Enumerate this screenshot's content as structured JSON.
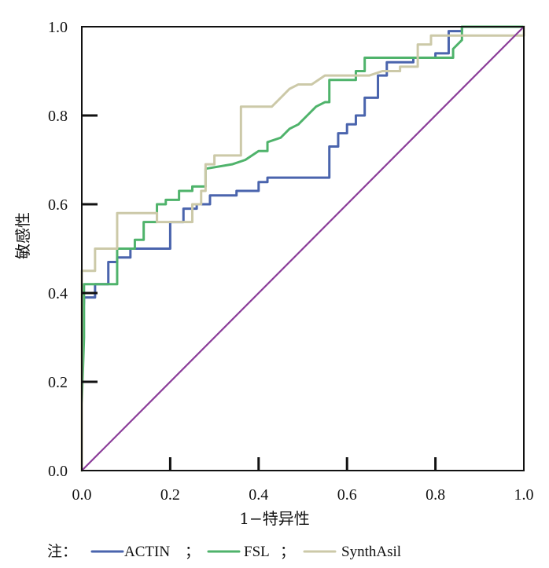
{
  "chart_data": {
    "type": "line",
    "xlabel": "1−特异性",
    "ylabel": "敏感性",
    "xlim": [
      0.0,
      1.0
    ],
    "ylim": [
      0.0,
      1.0
    ],
    "x_ticks": [
      "0.0",
      "0.2",
      "0.4",
      "0.6",
      "0.8",
      "1.0"
    ],
    "y_ticks": [
      "0.0",
      "0.2",
      "0.4",
      "0.6",
      "0.8",
      "1.0"
    ],
    "grid": false,
    "legend_position": "bottom",
    "legend_prefix": "注：",
    "legend_separator": "；",
    "series": [
      {
        "name": "ACTIN",
        "color": "#4a64ad",
        "points": [
          [
            0.0,
            0.0
          ],
          [
            0.0,
            0.3
          ],
          [
            0.005,
            0.38
          ],
          [
            0.005,
            0.39
          ],
          [
            0.03,
            0.39
          ],
          [
            0.03,
            0.42
          ],
          [
            0.06,
            0.42
          ],
          [
            0.06,
            0.47
          ],
          [
            0.08,
            0.47
          ],
          [
            0.08,
            0.48
          ],
          [
            0.11,
            0.48
          ],
          [
            0.11,
            0.5
          ],
          [
            0.2,
            0.5
          ],
          [
            0.2,
            0.56
          ],
          [
            0.23,
            0.56
          ],
          [
            0.23,
            0.59
          ],
          [
            0.26,
            0.59
          ],
          [
            0.26,
            0.6
          ],
          [
            0.29,
            0.6
          ],
          [
            0.29,
            0.62
          ],
          [
            0.35,
            0.62
          ],
          [
            0.35,
            0.63
          ],
          [
            0.4,
            0.63
          ],
          [
            0.4,
            0.65
          ],
          [
            0.42,
            0.65
          ],
          [
            0.42,
            0.66
          ],
          [
            0.56,
            0.66
          ],
          [
            0.56,
            0.73
          ],
          [
            0.58,
            0.73
          ],
          [
            0.58,
            0.76
          ],
          [
            0.6,
            0.76
          ],
          [
            0.6,
            0.78
          ],
          [
            0.62,
            0.78
          ],
          [
            0.62,
            0.8
          ],
          [
            0.64,
            0.8
          ],
          [
            0.64,
            0.84
          ],
          [
            0.67,
            0.84
          ],
          [
            0.67,
            0.89
          ],
          [
            0.69,
            0.89
          ],
          [
            0.69,
            0.92
          ],
          [
            0.75,
            0.92
          ],
          [
            0.75,
            0.93
          ],
          [
            0.8,
            0.93
          ],
          [
            0.8,
            0.94
          ],
          [
            0.83,
            0.94
          ],
          [
            0.83,
            0.99
          ],
          [
            0.86,
            0.99
          ],
          [
            0.86,
            1.0
          ],
          [
            1.0,
            1.0
          ]
        ]
      },
      {
        "name": "FSL",
        "color": "#4fb36b",
        "points": [
          [
            0.0,
            0.0
          ],
          [
            0.0,
            0.15
          ],
          [
            0.005,
            0.3
          ],
          [
            0.005,
            0.42
          ],
          [
            0.08,
            0.42
          ],
          [
            0.08,
            0.5
          ],
          [
            0.12,
            0.5
          ],
          [
            0.12,
            0.52
          ],
          [
            0.14,
            0.52
          ],
          [
            0.14,
            0.56
          ],
          [
            0.17,
            0.56
          ],
          [
            0.17,
            0.6
          ],
          [
            0.19,
            0.6
          ],
          [
            0.19,
            0.61
          ],
          [
            0.22,
            0.61
          ],
          [
            0.22,
            0.63
          ],
          [
            0.25,
            0.63
          ],
          [
            0.25,
            0.64
          ],
          [
            0.28,
            0.64
          ],
          [
            0.28,
            0.68
          ],
          [
            0.34,
            0.69
          ],
          [
            0.37,
            0.7
          ],
          [
            0.4,
            0.72
          ],
          [
            0.42,
            0.72
          ],
          [
            0.42,
            0.74
          ],
          [
            0.45,
            0.75
          ],
          [
            0.47,
            0.77
          ],
          [
            0.49,
            0.78
          ],
          [
            0.51,
            0.8
          ],
          [
            0.53,
            0.82
          ],
          [
            0.55,
            0.83
          ],
          [
            0.56,
            0.83
          ],
          [
            0.56,
            0.88
          ],
          [
            0.62,
            0.88
          ],
          [
            0.62,
            0.9
          ],
          [
            0.64,
            0.9
          ],
          [
            0.64,
            0.93
          ],
          [
            0.72,
            0.93
          ],
          [
            0.84,
            0.93
          ],
          [
            0.84,
            0.95
          ],
          [
            0.86,
            0.97
          ],
          [
            0.86,
            1.0
          ],
          [
            1.0,
            1.0
          ]
        ]
      },
      {
        "name": "SynthAsil",
        "color": "#ccc9a8",
        "points": [
          [
            0.0,
            0.0
          ],
          [
            0.0,
            0.45
          ],
          [
            0.03,
            0.45
          ],
          [
            0.03,
            0.5
          ],
          [
            0.08,
            0.5
          ],
          [
            0.08,
            0.58
          ],
          [
            0.17,
            0.58
          ],
          [
            0.17,
            0.56
          ],
          [
            0.25,
            0.56
          ],
          [
            0.25,
            0.6
          ],
          [
            0.27,
            0.6
          ],
          [
            0.27,
            0.63
          ],
          [
            0.28,
            0.63
          ],
          [
            0.28,
            0.69
          ],
          [
            0.3,
            0.69
          ],
          [
            0.3,
            0.71
          ],
          [
            0.36,
            0.71
          ],
          [
            0.36,
            0.82
          ],
          [
            0.43,
            0.82
          ],
          [
            0.45,
            0.84
          ],
          [
            0.47,
            0.86
          ],
          [
            0.49,
            0.87
          ],
          [
            0.52,
            0.87
          ],
          [
            0.55,
            0.89
          ],
          [
            0.65,
            0.89
          ],
          [
            0.68,
            0.9
          ],
          [
            0.72,
            0.9
          ],
          [
            0.72,
            0.91
          ],
          [
            0.76,
            0.91
          ],
          [
            0.76,
            0.96
          ],
          [
            0.79,
            0.96
          ],
          [
            0.79,
            0.98
          ],
          [
            1.0,
            0.98
          ],
          [
            1.0,
            1.0
          ]
        ]
      },
      {
        "name": "",
        "color": "#8b3d99",
        "points": [
          [
            0.0,
            0.0
          ],
          [
            1.0,
            1.0
          ]
        ]
      }
    ]
  }
}
